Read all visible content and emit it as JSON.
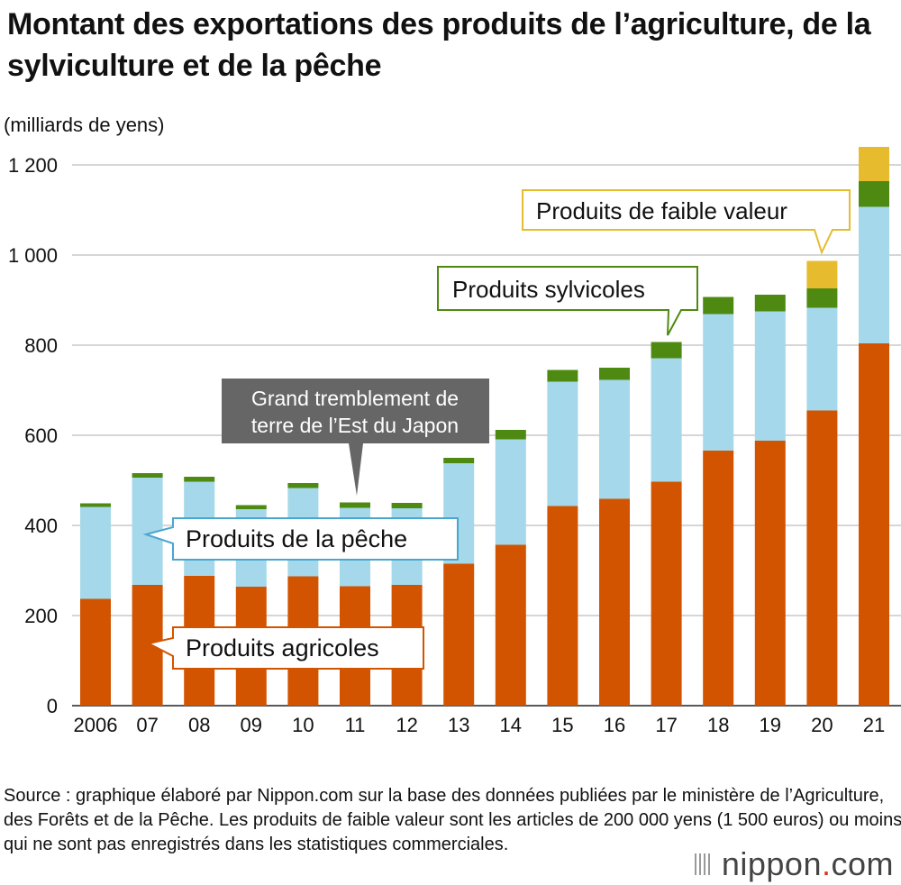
{
  "title": "Montant des exportations des produits de l’agriculture, de la sylviculture et de la pêche",
  "unit_label": "(milliards de yens)",
  "chart_data": {
    "type": "bar",
    "stacked": true,
    "categories": [
      "2006",
      "07",
      "08",
      "09",
      "10",
      "11",
      "12",
      "13",
      "14",
      "15",
      "16",
      "17",
      "18",
      "19",
      "20",
      "21"
    ],
    "series": [
      {
        "name": "Produits agricoles",
        "color": "#d35400",
        "values": [
          237,
          268,
          288,
          264,
          287,
          265,
          268,
          315,
          357,
          443,
          459,
          497,
          566,
          588,
          655,
          804
        ]
      },
      {
        "name": "Produits de la pêche",
        "color": "#a4d8ea",
        "values": [
          204,
          238,
          209,
          172,
          196,
          174,
          170,
          223,
          234,
          276,
          264,
          274,
          303,
          287,
          228,
          303
        ]
      },
      {
        "name": "Produits sylvicoles",
        "color": "#4e8a12",
        "values": [
          8,
          10,
          11,
          9,
          11,
          12,
          12,
          12,
          21,
          26,
          27,
          36,
          38,
          37,
          43,
          57
        ]
      },
      {
        "name": "Produits de faible valeur",
        "color": "#e6bb2e",
        "values": [
          0,
          0,
          0,
          0,
          0,
          0,
          0,
          0,
          0,
          0,
          0,
          0,
          0,
          0,
          61,
          76
        ]
      }
    ],
    "y_ticks": [
      "0",
      "200",
      "400",
      "600",
      "800",
      "1 000",
      "1 200"
    ],
    "y_tick_values": [
      0,
      200,
      400,
      600,
      800,
      1000,
      1200
    ],
    "ylim": [
      0,
      1200
    ],
    "grid": true,
    "legend": "inline callouts"
  },
  "annotations": {
    "agricole": "Produits agricoles",
    "peche": "Produits de la pêche",
    "sylvicole": "Produits sylvicoles",
    "faible": "Produits de faible valeur",
    "seisme_line1": "Grand tremblement de",
    "seisme_line2": "terre de l’Est du Japon"
  },
  "source": "Source : graphique élaboré par Nippon.com sur la base des données publiées par le ministère de l’Agriculture, des Forêts et de la Pêche. Les produits de faible valeur sont les articles de 200 000 yens (1 500 euros) ou moins qui ne sont pas enregistrés dans les statistiques commerciales.",
  "brand": {
    "name": "nippon",
    "dot": ".",
    "suffix": "com"
  }
}
